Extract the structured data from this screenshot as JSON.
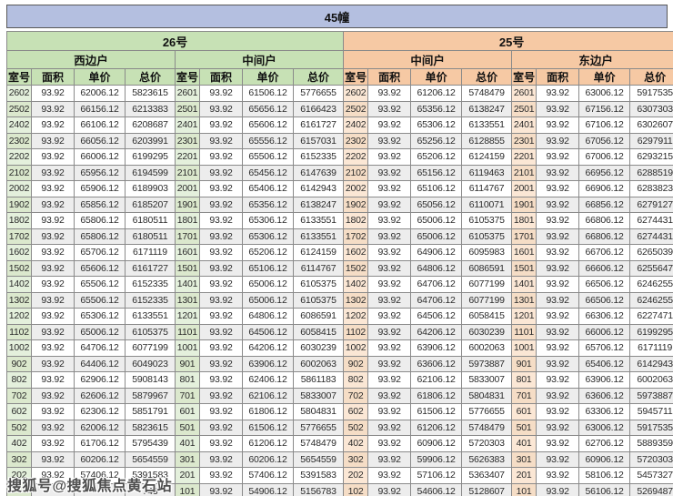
{
  "title": "45幢",
  "columns": [
    "室号",
    "面积",
    "单价",
    "总价"
  ],
  "sections": [
    {
      "building": "26号",
      "units": [
        "西边户",
        "中间户"
      ],
      "header_color": "#c7e1b5",
      "room_cell_color": "#e4f0dc"
    },
    {
      "building": "25号",
      "units": [
        "中间户",
        "东边户"
      ],
      "header_color": "#f6c9a4",
      "room_cell_color": "#fbe7d5"
    }
  ],
  "colors": {
    "title_bar": "#b4bfe0",
    "alt_row": "#ededed",
    "grid_border": "#8a8a8a"
  },
  "watermark": "搜狐号@搜狐焦点黄石站",
  "rows": [
    [
      "2602",
      "93.92",
      "62006.12",
      "5823615",
      "2601",
      "93.92",
      "61506.12",
      "5776655",
      "2602",
      "93.92",
      "61206.12",
      "5748479",
      "2601",
      "93.92",
      "63006.12",
      "5917535"
    ],
    [
      "2502",
      "93.92",
      "66156.12",
      "6213383",
      "2501",
      "93.92",
      "65656.12",
      "6166423",
      "2502",
      "93.92",
      "65356.12",
      "6138247",
      "2501",
      "93.92",
      "67156.12",
      "6307303"
    ],
    [
      "2402",
      "93.92",
      "66106.12",
      "6208687",
      "2401",
      "93.92",
      "65606.12",
      "6161727",
      "2402",
      "93.92",
      "65306.12",
      "6133551",
      "2401",
      "93.92",
      "67106.12",
      "6302607"
    ],
    [
      "2302",
      "93.92",
      "66056.12",
      "6203991",
      "2301",
      "93.92",
      "65556.12",
      "6157031",
      "2302",
      "93.92",
      "65256.12",
      "6128855",
      "2301",
      "93.92",
      "67056.12",
      "6297911"
    ],
    [
      "2202",
      "93.92",
      "66006.12",
      "6199295",
      "2201",
      "93.92",
      "65506.12",
      "6152335",
      "2202",
      "93.92",
      "65206.12",
      "6124159",
      "2201",
      "93.92",
      "67006.12",
      "6293215"
    ],
    [
      "2102",
      "93.92",
      "65956.12",
      "6194599",
      "2101",
      "93.92",
      "65456.12",
      "6147639",
      "2102",
      "93.92",
      "65156.12",
      "6119463",
      "2101",
      "93.92",
      "66956.12",
      "6288519"
    ],
    [
      "2002",
      "93.92",
      "65906.12",
      "6189903",
      "2001",
      "93.92",
      "65406.12",
      "6142943",
      "2002",
      "93.92",
      "65106.12",
      "6114767",
      "2001",
      "93.92",
      "66906.12",
      "6283823"
    ],
    [
      "1902",
      "93.92",
      "65856.12",
      "6185207",
      "1901",
      "93.92",
      "65356.12",
      "6138247",
      "1902",
      "93.92",
      "65056.12",
      "6110071",
      "1901",
      "93.92",
      "66856.12",
      "6279127"
    ],
    [
      "1802",
      "93.92",
      "65806.12",
      "6180511",
      "1801",
      "93.92",
      "65306.12",
      "6133551",
      "1802",
      "93.92",
      "65006.12",
      "6105375",
      "1801",
      "93.92",
      "66806.12",
      "6274431"
    ],
    [
      "1702",
      "93.92",
      "65806.12",
      "6180511",
      "1701",
      "93.92",
      "65306.12",
      "6133551",
      "1702",
      "93.92",
      "65006.12",
      "6105375",
      "1701",
      "93.92",
      "66806.12",
      "6274431"
    ],
    [
      "1602",
      "93.92",
      "65706.12",
      "6171119",
      "1601",
      "93.92",
      "65206.12",
      "6124159",
      "1602",
      "93.92",
      "64906.12",
      "6095983",
      "1601",
      "93.92",
      "66706.12",
      "6265039"
    ],
    [
      "1502",
      "93.92",
      "65606.12",
      "6161727",
      "1501",
      "93.92",
      "65106.12",
      "6114767",
      "1502",
      "93.92",
      "64806.12",
      "6086591",
      "1501",
      "93.92",
      "66606.12",
      "6255647"
    ],
    [
      "1402",
      "93.92",
      "65506.12",
      "6152335",
      "1401",
      "93.92",
      "65006.12",
      "6105375",
      "1402",
      "93.92",
      "64706.12",
      "6077199",
      "1401",
      "93.92",
      "66506.12",
      "6246255"
    ],
    [
      "1302",
      "93.92",
      "65506.12",
      "6152335",
      "1301",
      "93.92",
      "65006.12",
      "6105375",
      "1302",
      "93.92",
      "64706.12",
      "6077199",
      "1301",
      "93.92",
      "66506.12",
      "6246255"
    ],
    [
      "1202",
      "93.92",
      "65306.12",
      "6133551",
      "1201",
      "93.92",
      "64806.12",
      "6086591",
      "1202",
      "93.92",
      "64506.12",
      "6058415",
      "1201",
      "93.92",
      "66306.12",
      "6227471"
    ],
    [
      "1102",
      "93.92",
      "65006.12",
      "6105375",
      "1101",
      "93.92",
      "64506.12",
      "6058415",
      "1102",
      "93.92",
      "64206.12",
      "6030239",
      "1101",
      "93.92",
      "66006.12",
      "6199295"
    ],
    [
      "1002",
      "93.92",
      "64706.12",
      "6077199",
      "1001",
      "93.92",
      "64206.12",
      "6030239",
      "1002",
      "93.92",
      "63906.12",
      "6002063",
      "1001",
      "93.92",
      "65706.12",
      "6171119"
    ],
    [
      "902",
      "93.92",
      "64406.12",
      "6049023",
      "901",
      "93.92",
      "63906.12",
      "6002063",
      "902",
      "93.92",
      "63606.12",
      "5973887",
      "901",
      "93.92",
      "65406.12",
      "6142943"
    ],
    [
      "802",
      "93.92",
      "62906.12",
      "5908143",
      "801",
      "93.92",
      "62406.12",
      "5861183",
      "802",
      "93.92",
      "62106.12",
      "5833007",
      "801",
      "93.92",
      "63906.12",
      "6002063"
    ],
    [
      "702",
      "93.92",
      "62606.12",
      "5879967",
      "701",
      "93.92",
      "62106.12",
      "5833007",
      "702",
      "93.92",
      "61806.12",
      "5804831",
      "701",
      "93.92",
      "63606.12",
      "5973887"
    ],
    [
      "602",
      "93.92",
      "62306.12",
      "5851791",
      "601",
      "93.92",
      "61806.12",
      "5804831",
      "602",
      "93.92",
      "61506.12",
      "5776655",
      "601",
      "93.92",
      "63306.12",
      "5945711"
    ],
    [
      "502",
      "93.92",
      "62006.12",
      "5823615",
      "501",
      "93.92",
      "61506.12",
      "5776655",
      "502",
      "93.92",
      "61206.12",
      "5748479",
      "501",
      "93.92",
      "63006.12",
      "5917535"
    ],
    [
      "402",
      "93.92",
      "61706.12",
      "5795439",
      "401",
      "93.92",
      "61206.12",
      "5748479",
      "402",
      "93.92",
      "60906.12",
      "5720303",
      "401",
      "93.92",
      "62706.12",
      "5889359"
    ],
    [
      "302",
      "93.92",
      "60206.12",
      "5654559",
      "301",
      "93.92",
      "60206.12",
      "5654559",
      "302",
      "93.92",
      "59906.12",
      "5626383",
      "301",
      "93.92",
      "60906.12",
      "5720303"
    ],
    [
      "202",
      "93.92",
      "57406.12",
      "5391583",
      "201",
      "93.92",
      "57406.12",
      "5391583",
      "202",
      "93.92",
      "57106.12",
      "5363407",
      "201",
      "93.92",
      "58106.12",
      "5457327"
    ],
    [
      "",
      "",
      "",
      "743",
      "101",
      "93.92",
      "54906.12",
      "5156783",
      "102",
      "93.92",
      "54606.12",
      "5128607",
      "101",
      "93.92",
      "56106.12",
      "5269487"
    ]
  ]
}
